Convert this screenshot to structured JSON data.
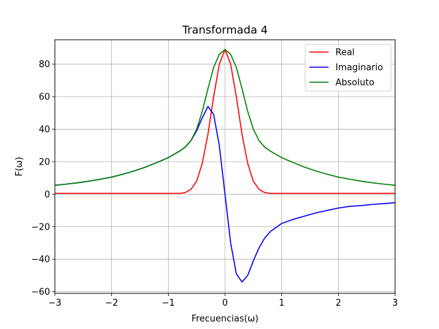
{
  "chart_data": {
    "type": "line",
    "title": "Transformada 4",
    "xlabel": "Frecuencias(ω)",
    "ylabel": "F(ω)",
    "xlim": [
      -3,
      3
    ],
    "ylim": [
      -61,
      95
    ],
    "xticks": [
      -3,
      -2,
      -1,
      0,
      1,
      2,
      3
    ],
    "yticks": [
      -60,
      -40,
      -20,
      0,
      20,
      40,
      60,
      80
    ],
    "grid": true,
    "legend_position": "top-right",
    "x": [
      -3.0,
      -2.8,
      -2.6,
      -2.4,
      -2.2,
      -2.0,
      -1.8,
      -1.6,
      -1.4,
      -1.2,
      -1.0,
      -0.9,
      -0.8,
      -0.7,
      -0.6,
      -0.5,
      -0.4,
      -0.3,
      -0.2,
      -0.1,
      0.0,
      0.1,
      0.2,
      0.3,
      0.4,
      0.5,
      0.6,
      0.7,
      0.8,
      0.9,
      1.0,
      1.2,
      1.4,
      1.6,
      1.8,
      2.0,
      2.2,
      2.4,
      2.6,
      2.8,
      3.0
    ],
    "series": [
      {
        "name": "Real",
        "color": "#ff0000",
        "values": [
          0.5,
          0.5,
          0.5,
          0.5,
          0.5,
          0.5,
          0.5,
          0.5,
          0.5,
          0.5,
          0.5,
          0.5,
          0.5,
          1,
          3,
          8,
          19,
          37,
          60,
          80,
          89,
          80,
          60,
          37,
          19,
          8,
          3,
          1,
          0.5,
          0.5,
          0.5,
          0.5,
          0.5,
          0.5,
          0.5,
          0.5,
          0.5,
          0.5,
          0.5,
          0.5,
          0.5
        ]
      },
      {
        "name": "Imaginario",
        "color": "#0000ff",
        "values": [
          5.5,
          6.2,
          7.0,
          8.0,
          9.2,
          10.5,
          12.3,
          14.3,
          16.7,
          19.5,
          22.5,
          24.5,
          26.5,
          29,
          33,
          39,
          47,
          54,
          49,
          30,
          0,
          -30,
          -49,
          -54,
          -50,
          -41,
          -33,
          -27,
          -23,
          -20.5,
          -18,
          -15.5,
          -13.5,
          -11.5,
          -10,
          -8.5,
          -7.5,
          -7,
          -6.3,
          -5.8,
          -5.2
        ]
      },
      {
        "name": "Absoluto",
        "color": "#008000",
        "values": [
          5.5,
          6.2,
          7.0,
          8.0,
          9.2,
          10.5,
          12.3,
          14.3,
          16.7,
          19.5,
          22.5,
          24.5,
          26.5,
          29,
          33,
          40,
          51,
          65,
          78,
          86,
          89,
          86,
          78,
          65,
          51,
          40,
          33,
          29,
          26.5,
          24.5,
          22.5,
          19.5,
          16.7,
          14.3,
          12.3,
          10.5,
          9.2,
          8.0,
          7.0,
          6.2,
          5.5
        ]
      }
    ]
  }
}
